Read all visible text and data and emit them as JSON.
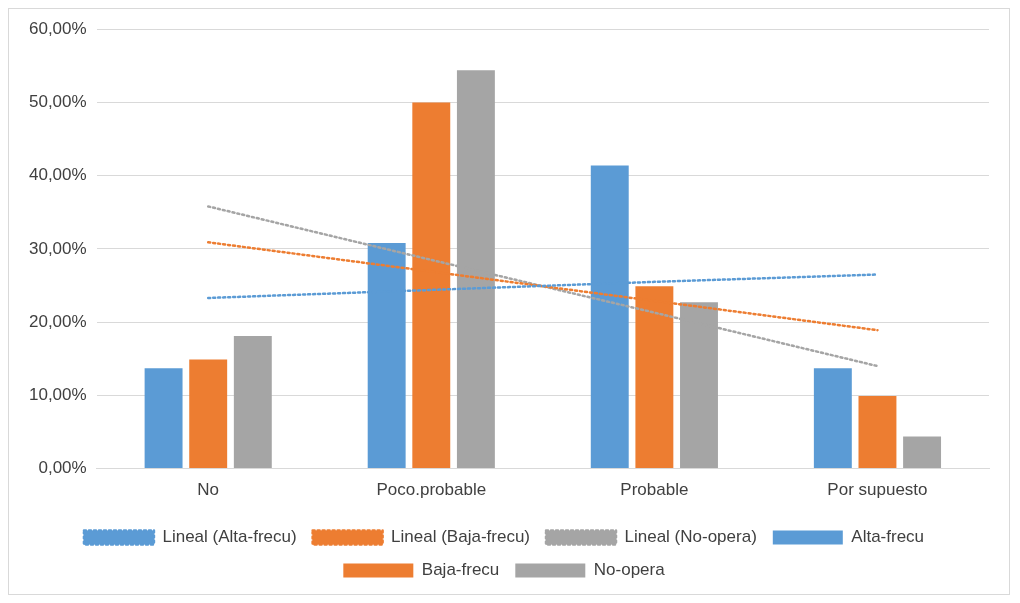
{
  "chart_data": {
    "type": "bar",
    "categories": [
      "No",
      "Poco.probable",
      "Probable",
      "Por supuesto"
    ],
    "series": [
      {
        "name": "Alta-frecu",
        "color": "#5b9bd5",
        "values": [
          13.7,
          30.8,
          41.4,
          13.7
        ]
      },
      {
        "name": "Baja-frecu",
        "color": "#ed7d31",
        "values": [
          14.9,
          50.0,
          24.9,
          9.9
        ]
      },
      {
        "name": "No-opera",
        "color": "#a5a5a5",
        "values": [
          18.1,
          54.4,
          22.7,
          4.4
        ]
      },
      {
        "name": "Lineal (Alta-frecu)",
        "type": "line",
        "color": "#5b9bd5",
        "line_style": "dotted",
        "marker": "none",
        "x": [
          "No",
          "Poco.probable",
          "Probable",
          "Por supuesto"
        ],
        "values": [
          23.3,
          24.4,
          25.5,
          26.5
        ]
      },
      {
        "name": "Lineal (Baja-frecu)",
        "type": "line",
        "color": "#ed7d31",
        "line_style": "dotted",
        "marker": "none",
        "x": [
          "No",
          "Poco.probable",
          "Probable",
          "Por supuesto"
        ],
        "values": [
          30.9,
          26.9,
          22.9,
          18.9
        ]
      },
      {
        "name": "Lineal (No-opera)",
        "type": "line",
        "color": "#a5a5a5",
        "line_style": "dotted",
        "marker": "none",
        "x": [
          "No",
          "Poco.probable",
          "Probable",
          "Por supuesto"
        ],
        "values": [
          35.8,
          28.5,
          21.3,
          14.0
        ]
      }
    ],
    "ylim": [
      0,
      60
    ],
    "yticks": [
      {
        "value": 0,
        "label": "0,00%"
      },
      {
        "value": 10,
        "label": "10,00%"
      },
      {
        "value": 20,
        "label": "20,00%"
      },
      {
        "value": 30,
        "label": "30,00%"
      },
      {
        "value": 40,
        "label": "40,00%"
      },
      {
        "value": 50,
        "label": "50,00%"
      },
      {
        "value": 60,
        "label": "60,00%"
      }
    ],
    "grid": "y",
    "legend": "bottom"
  }
}
